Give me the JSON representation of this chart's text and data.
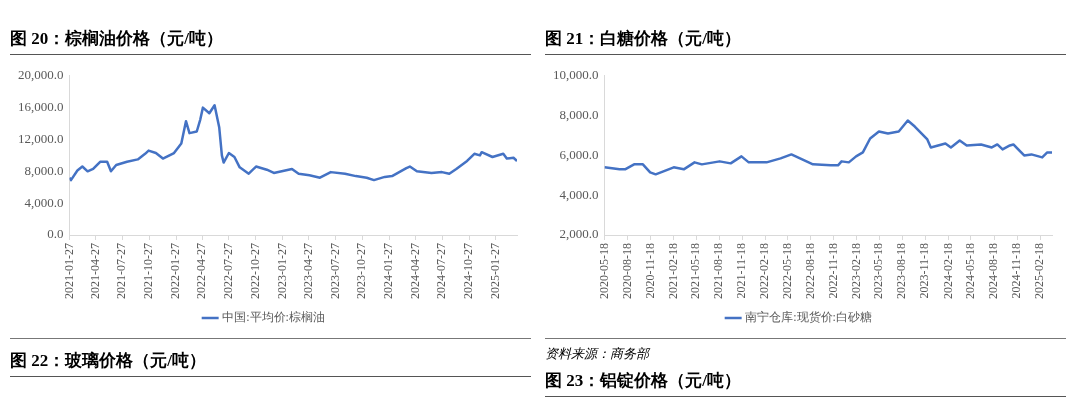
{
  "chart_data": [
    {
      "type": "line",
      "title": "图 20：棕榈油价格（元/吨）",
      "legend": "bottom",
      "grid": false,
      "marker": "none",
      "line_style": "solid",
      "ylim": [
        0,
        20000
      ],
      "yticks": [
        {
          "value": 0,
          "label": "0.0"
        },
        {
          "value": 4000,
          "label": "4,000.0"
        },
        {
          "value": 8000,
          "label": "8,000.0"
        },
        {
          "value": 12000,
          "label": "12,000.0"
        },
        {
          "value": 16000,
          "label": "16,000.0"
        },
        {
          "value": 20000,
          "label": "20,000.0"
        }
      ],
      "xlim": [
        "2021-01-27",
        "2025-04-09"
      ],
      "xticks": [
        {
          "value": "2021-01-27",
          "label": "2021-01-27"
        },
        {
          "value": "2021-04-27",
          "label": "2021-04-27"
        },
        {
          "value": "2021-07-27",
          "label": "2021-07-27"
        },
        {
          "value": "2021-10-27",
          "label": "2021-10-27"
        },
        {
          "value": "2022-01-27",
          "label": "2022-01-27"
        },
        {
          "value": "2022-04-27",
          "label": "2022-04-27"
        },
        {
          "value": "2022-07-27",
          "label": "2022-07-27"
        },
        {
          "value": "2022-10-27",
          "label": "2022-10-27"
        },
        {
          "value": "2023-01-27",
          "label": "2023-01-27"
        },
        {
          "value": "2023-04-27",
          "label": "2023-04-27"
        },
        {
          "value": "2023-07-27",
          "label": "2023-07-27"
        },
        {
          "value": "2023-10-27",
          "label": "2023-10-27"
        },
        {
          "value": "2024-01-27",
          "label": "2024-01-27"
        },
        {
          "value": "2024-04-27",
          "label": "2024-04-27"
        },
        {
          "value": "2024-07-27",
          "label": "2024-07-27"
        },
        {
          "value": "2024-10-27",
          "label": "2024-10-27"
        },
        {
          "value": "2025-01-27",
          "label": "2025-01-27"
        }
      ],
      "x": [
        "2021-01-27",
        "2021-02-01",
        "2021-02-23",
        "2021-03-12",
        "2021-03-30",
        "2021-04-18",
        "2021-05-12",
        "2021-06-05",
        "2021-06-18",
        "2021-07-06",
        "2021-08-12",
        "2021-09-18",
        "2021-10-13",
        "2021-10-25",
        "2021-11-19",
        "2021-12-13",
        "2022-01-20",
        "2022-02-14",
        "2022-03-02",
        "2022-03-14",
        "2022-04-08",
        "2022-04-20",
        "2022-04-29",
        "2022-05-21",
        "2022-06-08",
        "2022-06-24",
        "2022-07-03",
        "2022-07-09",
        "2022-07-27",
        "2022-08-15",
        "2022-09-02",
        "2022-10-03",
        "2022-10-28",
        "2022-12-04",
        "2022-12-28",
        "2023-02-28",
        "2023-03-23",
        "2023-04-29",
        "2023-06-04",
        "2023-07-11",
        "2023-08-29",
        "2023-10-05",
        "2023-11-11",
        "2023-12-06",
        "2024-01-12",
        "2024-02-06",
        "2024-03-26",
        "2024-04-07",
        "2024-05-01",
        "2024-06-20",
        "2024-07-26",
        "2024-08-20",
        "2024-09-13",
        "2024-10-20",
        "2024-11-14",
        "2024-12-03",
        "2024-12-09",
        "2025-01-15",
        "2025-02-21",
        "2025-03-05",
        "2025-03-28",
        "2025-04-09"
      ],
      "series": [
        {
          "name": "中国:平均价:棕榈油",
          "color": "#4472c4",
          "values": [
            7200,
            6900,
            8100,
            8600,
            8000,
            8300,
            9200,
            9200,
            8000,
            8800,
            9200,
            9500,
            10200,
            10600,
            10300,
            9600,
            10300,
            11500,
            14300,
            12800,
            13000,
            14500,
            16000,
            15300,
            16300,
            13500,
            10000,
            9100,
            10300,
            9800,
            8500,
            7700,
            8600,
            8200,
            7800,
            8300,
            7700,
            7500,
            7200,
            7900,
            7700,
            7400,
            7200,
            6900,
            7300,
            7400,
            8400,
            8600,
            8000,
            7800,
            7900,
            7700,
            8300,
            9300,
            10200,
            10000,
            10400,
            9800,
            10200,
            9600,
            9700,
            9300
          ]
        }
      ],
      "annotations": [
        "图 22：玻璃价格（元/吨）"
      ]
    },
    {
      "type": "line",
      "title": "图 21：白糖价格（元/吨）",
      "legend": "bottom",
      "grid": false,
      "marker": "none",
      "line_style": "solid",
      "ylim": [
        2000,
        10000
      ],
      "yticks": [
        {
          "value": 2000,
          "label": "2,000.0"
        },
        {
          "value": 4000,
          "label": "4,000.0"
        },
        {
          "value": 6000,
          "label": "6,000.0"
        },
        {
          "value": 8000,
          "label": "8,000.0"
        },
        {
          "value": 10000,
          "label": "10,000.0"
        }
      ],
      "xlim": [
        "2020-05-18",
        "2025-04-06"
      ],
      "xticks": [
        {
          "value": "2020-05-18",
          "label": "2020-05-18"
        },
        {
          "value": "2020-08-18",
          "label": "2020-08-18"
        },
        {
          "value": "2020-11-18",
          "label": "2020-11-18"
        },
        {
          "value": "2021-02-18",
          "label": "2021-02-18"
        },
        {
          "value": "2021-05-18",
          "label": "2021-05-18"
        },
        {
          "value": "2021-08-18",
          "label": "2021-08-18"
        },
        {
          "value": "2021-11-18",
          "label": "2021-11-18"
        },
        {
          "value": "2022-02-18",
          "label": "2022-02-18"
        },
        {
          "value": "2022-05-18",
          "label": "2022-05-18"
        },
        {
          "value": "2022-08-18",
          "label": "2022-08-18"
        },
        {
          "value": "2022-11-18",
          "label": "2022-11-18"
        },
        {
          "value": "2023-02-18",
          "label": "2023-02-18"
        },
        {
          "value": "2023-05-18",
          "label": "2023-05-18"
        },
        {
          "value": "2023-08-18",
          "label": "2023-08-18"
        },
        {
          "value": "2023-11-18",
          "label": "2023-11-18"
        },
        {
          "value": "2024-02-18",
          "label": "2024-02-18"
        },
        {
          "value": "2024-05-18",
          "label": "2024-05-18"
        },
        {
          "value": "2024-08-18",
          "label": "2024-08-18"
        },
        {
          "value": "2024-11-18",
          "label": "2024-11-18"
        },
        {
          "value": "2025-02-18",
          "label": "2025-02-18"
        }
      ],
      "x": [
        "2020-05-18",
        "2020-07-17",
        "2020-08-08",
        "2020-09-13",
        "2020-10-18",
        "2020-11-16",
        "2020-12-08",
        "2021-02-18",
        "2021-03-30",
        "2021-05-12",
        "2021-06-10",
        "2021-08-20",
        "2021-10-03",
        "2021-11-15",
        "2021-12-14",
        "2022-02-23",
        "2022-04-20",
        "2022-06-02",
        "2022-07-15",
        "2022-08-27",
        "2022-11-06",
        "2022-12-05",
        "2022-12-19",
        "2023-01-17",
        "2023-02-15",
        "2023-03-14",
        "2023-04-12",
        "2023-05-17",
        "2023-06-22",
        "2023-08-04",
        "2023-09-09",
        "2023-10-07",
        "2023-11-26",
        "2023-12-10",
        "2024-02-06",
        "2024-02-28",
        "2024-04-03",
        "2024-05-01",
        "2024-06-27",
        "2024-08-09",
        "2024-08-31",
        "2024-09-21",
        "2024-10-20",
        "2024-11-03",
        "2024-12-16",
        "2025-01-14",
        "2025-02-26",
        "2025-03-18",
        "2025-04-06"
      ],
      "series": [
        {
          "name": "南宁仓库:现货价:白砂糖",
          "color": "#4472c4",
          "values": [
            5400,
            5300,
            5300,
            5550,
            5550,
            5150,
            5050,
            5400,
            5300,
            5650,
            5550,
            5700,
            5600,
            5950,
            5650,
            5650,
            5850,
            6050,
            5800,
            5550,
            5500,
            5500,
            5700,
            5650,
            5950,
            6150,
            6850,
            7200,
            7100,
            7200,
            7750,
            7450,
            6800,
            6400,
            6600,
            6400,
            6750,
            6500,
            6550,
            6400,
            6550,
            6300,
            6500,
            6550,
            6000,
            6050,
            5900,
            6150,
            6150
          ]
        }
      ],
      "annotations": [
        "资料来源：商务部",
        "图 23：铝锭价格（元/吨）"
      ]
    }
  ]
}
